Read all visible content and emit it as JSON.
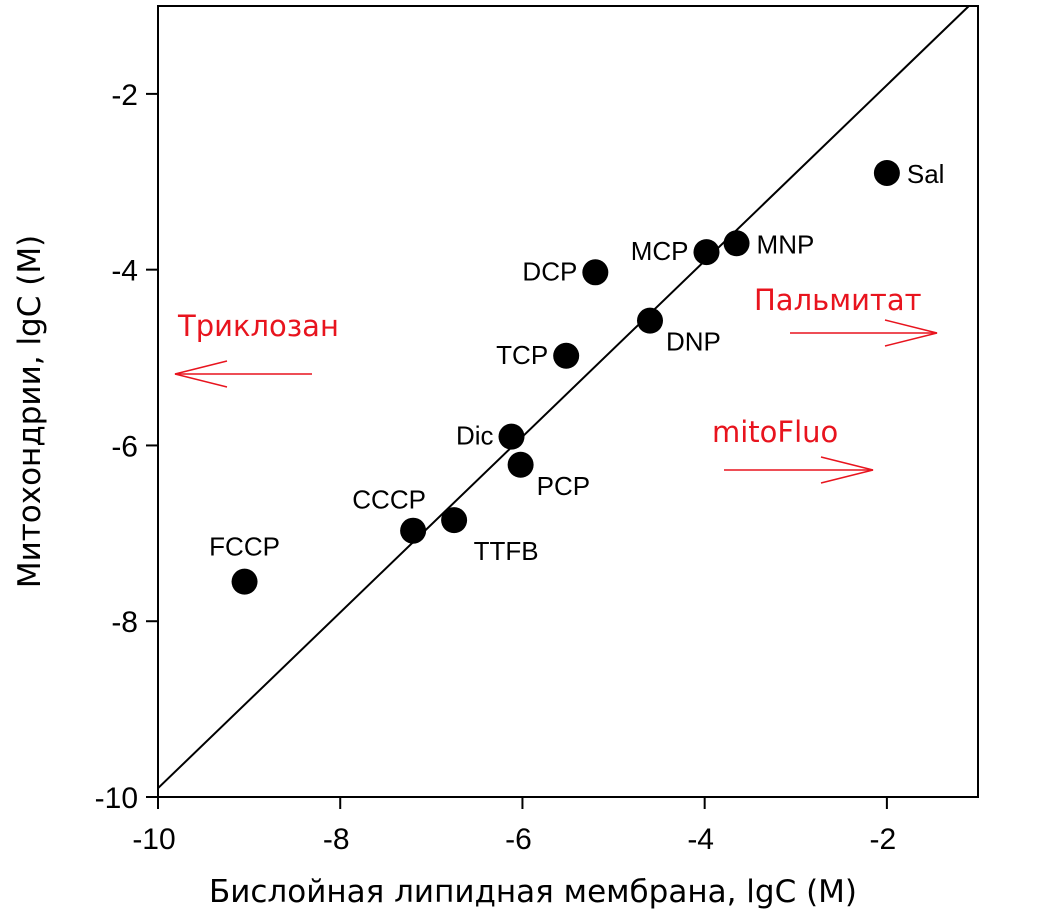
{
  "chart_data": {
    "type": "scatter",
    "xlabel": "Бислойная липидная мембрана, lgC (M)",
    "ylabel": "Митохондрии, lgC (M)",
    "xlim": [
      -10,
      -1
    ],
    "ylim": [
      -10,
      -1
    ],
    "xticks": [
      -10,
      -8,
      -6,
      -4,
      -2
    ],
    "yticks": [
      -10,
      -8,
      -6,
      -4,
      -2
    ],
    "grid": false,
    "reference_line": {
      "from": [
        -10,
        -9.9
      ],
      "to": [
        -1.1,
        -1
      ]
    },
    "points": [
      {
        "label": "FCCP",
        "x": -9.05,
        "y": -7.55,
        "label_pos": "above"
      },
      {
        "label": "CCCP",
        "x": -7.2,
        "y": -6.97,
        "label_pos": "above-left"
      },
      {
        "label": "TTFB",
        "x": -6.75,
        "y": -6.85,
        "label_pos": "below-right"
      },
      {
        "label": "Dic",
        "x": -6.12,
        "y": -5.9,
        "label_pos": "left"
      },
      {
        "label": "PCP",
        "x": -6.02,
        "y": -6.22,
        "label_pos": "right-below"
      },
      {
        "label": "TCP",
        "x": -5.52,
        "y": -4.98,
        "label_pos": "left"
      },
      {
        "label": "DCP",
        "x": -5.2,
        "y": -4.03,
        "label_pos": "left"
      },
      {
        "label": "DNP",
        "x": -4.6,
        "y": -4.58,
        "label_pos": "right-below"
      },
      {
        "label": "MCP",
        "x": -3.98,
        "y": -3.8,
        "label_pos": "left"
      },
      {
        "label": "MNP",
        "x": -3.65,
        "y": -3.7,
        "label_pos": "right"
      },
      {
        "label": "Sal",
        "x": -2.0,
        "y": -2.9,
        "label_pos": "right"
      }
    ],
    "annotations": [
      {
        "text": "Триклозан",
        "direction": "left",
        "color": "#e8141e"
      },
      {
        "text": "Пальмитат",
        "direction": "right",
        "color": "#e8141e"
      },
      {
        "text": "mitoFluo",
        "direction": "right",
        "color": "#e8141e"
      }
    ]
  }
}
